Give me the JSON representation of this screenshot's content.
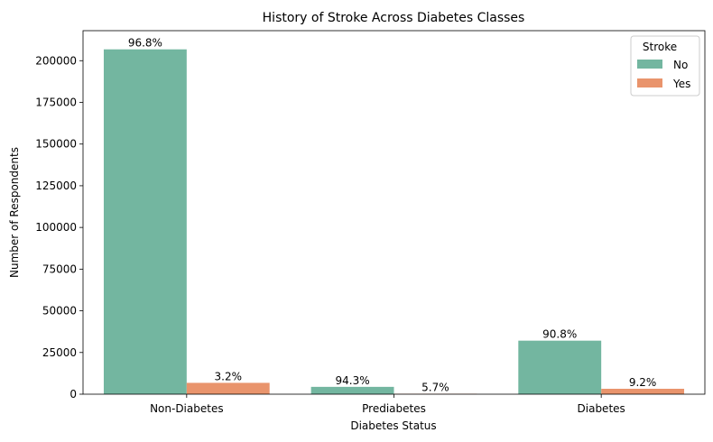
{
  "chart_data": {
    "type": "bar",
    "title": "History of Stroke Across Diabetes Classes",
    "xlabel": "Diabetes Status",
    "ylabel": "Number of Respondents",
    "categories": [
      "Non-Diabetes",
      "Prediabetes",
      "Diabetes"
    ],
    "series": [
      {
        "name": "No",
        "color": "#73b6a0",
        "values": [
          206800,
          4400,
          32100
        ],
        "labels": [
          "96.8%",
          "94.3%",
          "90.8%"
        ]
      },
      {
        "name": "Yes",
        "color": "#e9946c",
        "values": [
          6800,
          270,
          3250
        ],
        "labels": [
          "3.2%",
          "5.7%",
          "9.2%"
        ]
      }
    ],
    "ylim": [
      0,
      218000
    ],
    "yticks": [
      0,
      25000,
      50000,
      75000,
      100000,
      125000,
      150000,
      175000,
      200000
    ],
    "grid": false,
    "legend": {
      "title": "Stroke",
      "position": "top-right"
    }
  }
}
